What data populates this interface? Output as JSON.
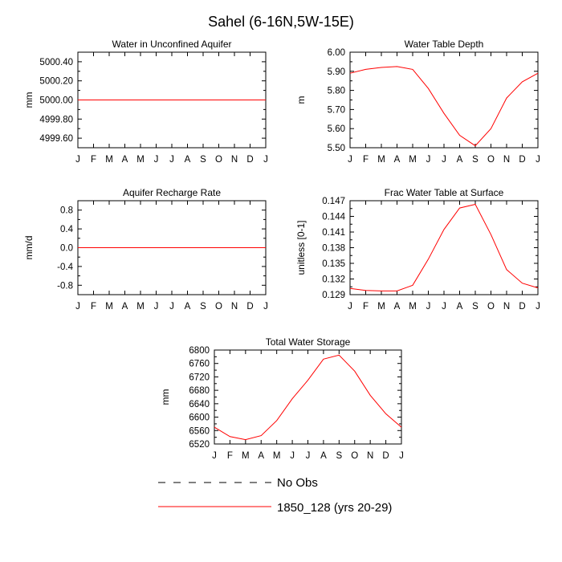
{
  "figure": {
    "title": "Sahel (6-16N,5W-15E)"
  },
  "chart_data": [
    {
      "type": "line",
      "title": "Water in Unconfined Aquifer",
      "ylabel": "mm",
      "xlabel": "",
      "categories": [
        "J",
        "F",
        "M",
        "A",
        "M",
        "J",
        "J",
        "A",
        "S",
        "O",
        "N",
        "D",
        "J"
      ],
      "ylim": [
        4999.5,
        5000.5
      ],
      "yticks": [
        4999.6,
        4999.8,
        5000.0,
        5000.2,
        5000.4
      ],
      "yticklabels": [
        "4999.60",
        "4999.80",
        "5000.00",
        "5000.20",
        "5000.40"
      ],
      "series": [
        {
          "name": "1850_128 (yrs 20-29)",
          "color": "#ff0000",
          "values": [
            5000,
            5000,
            5000,
            5000,
            5000,
            5000,
            5000,
            5000,
            5000,
            5000,
            5000,
            5000,
            5000
          ]
        }
      ]
    },
    {
      "type": "line",
      "title": "Water Table Depth",
      "ylabel": "m",
      "xlabel": "",
      "categories": [
        "J",
        "F",
        "M",
        "A",
        "M",
        "J",
        "J",
        "A",
        "S",
        "O",
        "N",
        "D",
        "J"
      ],
      "ylim": [
        5.5,
        6.0
      ],
      "yticks": [
        5.5,
        5.6,
        5.7,
        5.8,
        5.9,
        6.0
      ],
      "yticklabels": [
        "5.50",
        "5.60",
        "5.70",
        "5.80",
        "5.90",
        "6.00"
      ],
      "series": [
        {
          "name": "1850_128 (yrs 20-29)",
          "color": "#ff0000",
          "values": [
            5.89,
            5.91,
            5.92,
            5.925,
            5.91,
            5.81,
            5.68,
            5.565,
            5.51,
            5.6,
            5.76,
            5.845,
            5.89
          ]
        }
      ]
    },
    {
      "type": "line",
      "title": "Aquifer Recharge Rate",
      "ylabel": "mm/d",
      "xlabel": "",
      "categories": [
        "J",
        "F",
        "M",
        "A",
        "M",
        "J",
        "J",
        "A",
        "S",
        "O",
        "N",
        "D",
        "J"
      ],
      "ylim": [
        -1.0,
        1.0
      ],
      "yticks": [
        -0.8,
        -0.4,
        0.0,
        0.4,
        0.8
      ],
      "yticklabels": [
        "-0.8",
        "-0.4",
        "0.0",
        "0.4",
        "0.8"
      ],
      "series": [
        {
          "name": "1850_128 (yrs 20-29)",
          "color": "#ff0000",
          "values": [
            0,
            0,
            0,
            0,
            0,
            0,
            0,
            0,
            0,
            0,
            0,
            0,
            0
          ]
        }
      ]
    },
    {
      "type": "line",
      "title": "Frac Water Table at Surface",
      "ylabel": "unitless [0-1]",
      "xlabel": "",
      "categories": [
        "J",
        "F",
        "M",
        "A",
        "M",
        "J",
        "J",
        "A",
        "S",
        "O",
        "N",
        "D",
        "J"
      ],
      "ylim": [
        0.129,
        0.147
      ],
      "yticks": [
        0.129,
        0.132,
        0.135,
        0.138,
        0.141,
        0.144,
        0.147
      ],
      "yticklabels": [
        "0.129",
        "0.132",
        "0.135",
        "0.138",
        "0.141",
        "0.144",
        "0.147"
      ],
      "series": [
        {
          "name": "1850_128 (yrs 20-29)",
          "color": "#ff0000",
          "values": [
            0.1302,
            0.1298,
            0.1297,
            0.1297,
            0.1308,
            0.1358,
            0.1415,
            0.1456,
            0.1463,
            0.1405,
            0.1338,
            0.1312,
            0.1303
          ]
        }
      ]
    },
    {
      "type": "line",
      "title": "Total Water Storage",
      "ylabel": "mm",
      "xlabel": "",
      "categories": [
        "J",
        "F",
        "M",
        "A",
        "M",
        "J",
        "J",
        "A",
        "S",
        "O",
        "N",
        "D",
        "J"
      ],
      "ylim": [
        6520,
        6800
      ],
      "yticks": [
        6520,
        6560,
        6600,
        6640,
        6680,
        6720,
        6760,
        6800
      ],
      "yticklabels": [
        "6520",
        "6560",
        "6600",
        "6640",
        "6680",
        "6720",
        "6760",
        "6800"
      ],
      "series": [
        {
          "name": "1850_128 (yrs 20-29)",
          "color": "#ff0000",
          "values": [
            6570,
            6542,
            6533,
            6545,
            6590,
            6655,
            6710,
            6773,
            6785,
            6737,
            6665,
            6610,
            6570
          ]
        }
      ]
    }
  ],
  "legend": {
    "placement": "bottom-center",
    "entries": [
      {
        "label": "No Obs",
        "color": "#000000",
        "style": "dashed"
      },
      {
        "label": "1850_128 (yrs 20-29)",
        "color": "#ff0000",
        "style": "solid"
      }
    ]
  }
}
